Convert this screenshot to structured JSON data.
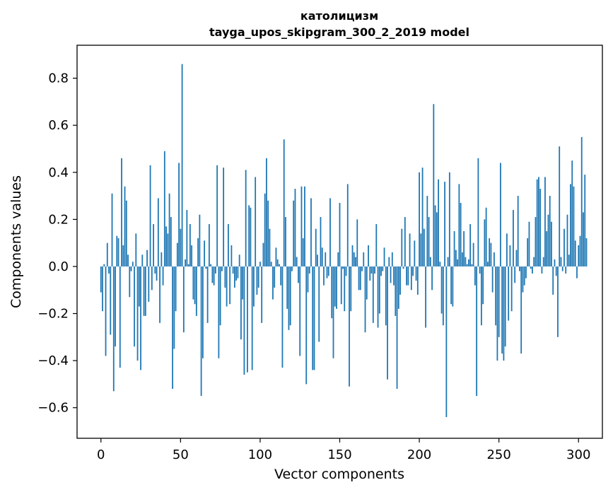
{
  "chart_data": {
    "type": "bar",
    "title": "католицизм",
    "subtitle": "tayga_upos_skipgram_300_2_2019 model",
    "xlabel": "Vector components",
    "ylabel": "Components values",
    "xlim": [
      -15,
      315
    ],
    "ylim": [
      -0.73,
      0.94
    ],
    "xticks": [
      0,
      50,
      100,
      150,
      200,
      250,
      300
    ],
    "xtick_labels": [
      "0",
      "50",
      "100",
      "150",
      "200",
      "250",
      "300"
    ],
    "yticks": [
      -0.6,
      -0.4,
      -0.2,
      0.0,
      0.2,
      0.4,
      0.6,
      0.8
    ],
    "ytick_labels": [
      "−0.6",
      "−0.4",
      "−0.2",
      "0.0",
      "0.2",
      "0.4",
      "0.6",
      "0.8"
    ],
    "bar_color": "#1f77b4",
    "grid": false,
    "values": [
      -0.11,
      -0.19,
      0.01,
      -0.38,
      0.1,
      -0.03,
      -0.29,
      0.31,
      -0.53,
      -0.34,
      0.13,
      0.12,
      -0.43,
      0.46,
      0.09,
      0.34,
      0.28,
      0.05,
      -0.13,
      -0.02,
      0.02,
      -0.34,
      0.14,
      -0.4,
      -0.17,
      -0.44,
      0.05,
      -0.21,
      -0.21,
      0.07,
      -0.15,
      0.43,
      -0.1,
      0.18,
      -0.03,
      -0.06,
      0.29,
      -0.24,
      0.06,
      -0.08,
      0.49,
      0.17,
      0.14,
      0.31,
      0.21,
      -0.52,
      -0.35,
      -0.19,
      0.1,
      0.44,
      0.16,
      0.86,
      -0.28,
      0.03,
      0.24,
      0.01,
      0.18,
      0.09,
      -0.14,
      -0.16,
      -0.21,
      0.12,
      0.22,
      -0.55,
      -0.39,
      0.11,
      -0.01,
      -0.24,
      0.18,
      0.01,
      -0.07,
      -0.08,
      -0.03,
      0.43,
      -0.39,
      -0.25,
      -0.02,
      0.42,
      -0.09,
      -0.17,
      0.18,
      -0.16,
      0.09,
      -0.03,
      -0.09,
      -0.06,
      -0.05,
      0.05,
      -0.31,
      -0.14,
      -0.46,
      0.41,
      -0.45,
      0.26,
      0.25,
      -0.44,
      -0.17,
      0.38,
      -0.12,
      -0.09,
      0.02,
      -0.24,
      0.1,
      0.31,
      0.46,
      0.28,
      0.16,
      0.02,
      -0.14,
      -0.09,
      0.08,
      0.03,
      0.01,
      -0.08,
      -0.43,
      0.54,
      0.21,
      -0.18,
      -0.27,
      -0.25,
      -0.02,
      0.28,
      0.33,
      0.04,
      -0.07,
      -0.38,
      0.34,
      0.12,
      0.34,
      -0.5,
      -0.11,
      -0.03,
      0.29,
      -0.44,
      -0.44,
      0.16,
      0.05,
      -0.32,
      0.21,
      0.08,
      -0.08,
      0.06,
      -0.05,
      -0.04,
      0.29,
      -0.22,
      -0.39,
      -0.17,
      -0.18,
      0.06,
      0.27,
      -0.16,
      -0.01,
      -0.19,
      -0.04,
      0.35,
      -0.51,
      -0.19,
      0.09,
      0.06,
      0.04,
      0.2,
      -0.1,
      -0.1,
      -0.02,
      0.06,
      -0.28,
      -0.14,
      0.09,
      -0.06,
      -0.03,
      -0.24,
      -0.03,
      0.18,
      -0.26,
      -0.2,
      -0.04,
      -0.02,
      0.08,
      -0.25,
      -0.48,
      0.04,
      -0.07,
      0.06,
      -0.08,
      -0.21,
      -0.52,
      -0.18,
      -0.12,
      0.16,
      -0.01,
      0.21,
      -0.08,
      -0.08,
      0.14,
      -0.1,
      -0.04,
      0.11,
      -0.06,
      -0.12,
      0.4,
      0.14,
      0.42,
      0.16,
      -0.26,
      0.3,
      0.21,
      0.04,
      -0.1,
      0.69,
      0.26,
      0.23,
      0.37,
      0.02,
      -0.2,
      -0.25,
      0.36,
      -0.64,
      0.04,
      0.4,
      -0.16,
      -0.17,
      0.15,
      0.07,
      0.03,
      0.35,
      0.27,
      0.06,
      0.15,
      0.04,
      0.01,
      0.03,
      0.18,
      0.01,
      0.1,
      -0.08,
      -0.55,
      0.46,
      -0.03,
      -0.25,
      -0.16,
      0.2,
      0.25,
      0.02,
      0.12,
      0.1,
      -0.11,
      0.06,
      -0.25,
      -0.4,
      -0.3,
      0.44,
      -0.37,
      -0.4,
      -0.34,
      0.14,
      -0.23,
      0.09,
      -0.19,
      0.24,
      -0.07,
      0.07,
      0.3,
      -0.02,
      -0.37,
      -0.11,
      -0.08,
      -0.05,
      0.12,
      0.19,
      -0.01,
      -0.03,
      0.04,
      0.21,
      0.37,
      0.38,
      0.33,
      -0.03,
      0.04,
      0.38,
      0.15,
      0.22,
      0.3,
      0.19,
      -0.12,
      0.03,
      -0.04,
      -0.3,
      0.51,
      0.04,
      -0.02,
      0.16,
      -0.03,
      0.22,
      0.05,
      0.35,
      0.45,
      0.34,
      0.11,
      -0.05,
      0.09,
      0.13,
      0.55,
      0.23,
      0.39,
      0.12
    ]
  }
}
